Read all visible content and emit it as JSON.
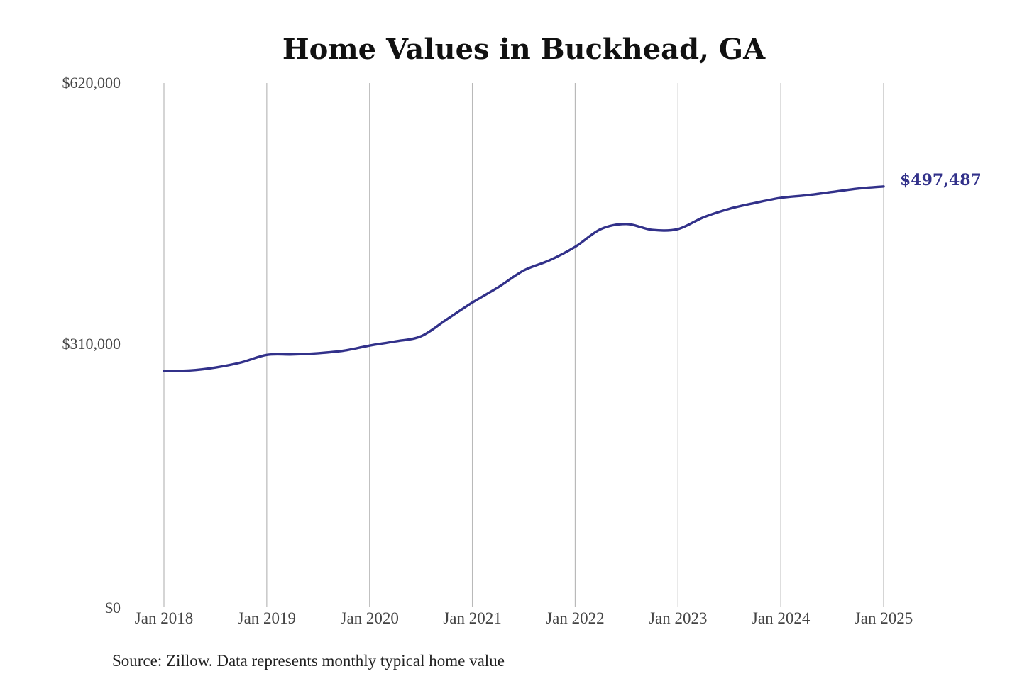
{
  "source_note": "Source: Zillow. Data represents monthly typical home value",
  "colors": {
    "line": "#32318a",
    "grid": "#b9b9b9",
    "text": "#444444"
  },
  "chart_data": {
    "type": "line",
    "title": "Home Values in Buckhead, GA",
    "xlabel": "",
    "ylabel": "",
    "ylim": [
      0,
      620000
    ],
    "y_ticks": [
      0,
      310000,
      620000
    ],
    "y_tick_labels": [
      "$0",
      "$310,000",
      "$620,000"
    ],
    "x_ticks": [
      "2018-01",
      "2019-01",
      "2020-01",
      "2021-01",
      "2022-01",
      "2023-01",
      "2024-01",
      "2025-01"
    ],
    "x_tick_labels": [
      "Jan 2018",
      "Jan 2019",
      "Jan 2020",
      "Jan 2021",
      "Jan 2022",
      "Jan 2023",
      "Jan 2024",
      "Jan 2025"
    ],
    "grid": "vertical",
    "end_label": "$497,487",
    "series": [
      {
        "points": [
          [
            "2018-01",
            279000
          ],
          [
            "2018-04",
            279500
          ],
          [
            "2018-07",
            283000
          ],
          [
            "2018-10",
            289000
          ],
          [
            "2019-01",
            298000
          ],
          [
            "2019-04",
            298500
          ],
          [
            "2019-07",
            300000
          ],
          [
            "2019-10",
            303000
          ],
          [
            "2020-01",
            309000
          ],
          [
            "2020-04",
            314000
          ],
          [
            "2020-07",
            320000
          ],
          [
            "2020-10",
            340000
          ],
          [
            "2021-01",
            360000
          ],
          [
            "2021-04",
            378000
          ],
          [
            "2021-07",
            398000
          ],
          [
            "2021-10",
            410000
          ],
          [
            "2022-01",
            426000
          ],
          [
            "2022-04",
            447000
          ],
          [
            "2022-07",
            453000
          ],
          [
            "2022-10",
            446000
          ],
          [
            "2023-01",
            447000
          ],
          [
            "2023-04",
            461000
          ],
          [
            "2023-07",
            471000
          ],
          [
            "2023-10",
            478000
          ],
          [
            "2024-01",
            484000
          ],
          [
            "2024-04",
            487000
          ],
          [
            "2024-07",
            491000
          ],
          [
            "2024-10",
            495000
          ],
          [
            "2025-01",
            497487
          ]
        ]
      }
    ]
  }
}
